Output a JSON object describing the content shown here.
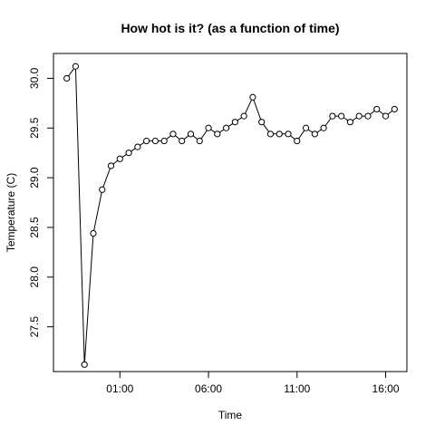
{
  "chart_data": {
    "type": "line",
    "title": "How hot is it? (as a function of time)",
    "xlabel": "Time",
    "ylabel": "Temperature (C)",
    "x_ticks": [
      "01:00",
      "06:00",
      "11:00",
      "16:00"
    ],
    "x_tick_hours": [
      1,
      6,
      11,
      16
    ],
    "xlim": [
      -2.75,
      17.2
    ],
    "y_ticks": [
      "27.5",
      "28.0",
      "28.5",
      "29.0",
      "29.5",
      "30.0"
    ],
    "ylim": [
      27.05,
      30.25
    ],
    "grid": false,
    "markers": "open-circle",
    "series": [
      {
        "x": [
          -2.0,
          -1.5,
          -1.0,
          -0.5,
          0.0,
          0.5,
          1.0,
          1.5,
          2.0,
          2.5,
          3.0,
          3.5,
          4.0,
          4.5,
          5.0,
          5.5,
          6.0,
          6.5,
          7.0,
          7.5,
          8.0,
          8.5,
          9.0,
          9.5,
          10.0,
          10.5,
          11.0,
          11.5,
          12.0,
          12.5,
          13.0,
          13.5,
          14.0,
          14.5,
          15.0,
          15.5,
          16.0,
          16.5
        ],
        "y": [
          30.0,
          30.12,
          27.12,
          28.44,
          28.88,
          29.12,
          29.19,
          29.25,
          29.31,
          29.37,
          29.37,
          29.37,
          29.44,
          29.37,
          29.44,
          29.37,
          29.5,
          29.44,
          29.5,
          29.56,
          29.62,
          29.81,
          29.56,
          29.44,
          29.44,
          29.44,
          29.37,
          29.5,
          29.44,
          29.5,
          29.62,
          29.62,
          29.56,
          29.62,
          29.62,
          29.69,
          29.62,
          29.69
        ]
      }
    ]
  }
}
